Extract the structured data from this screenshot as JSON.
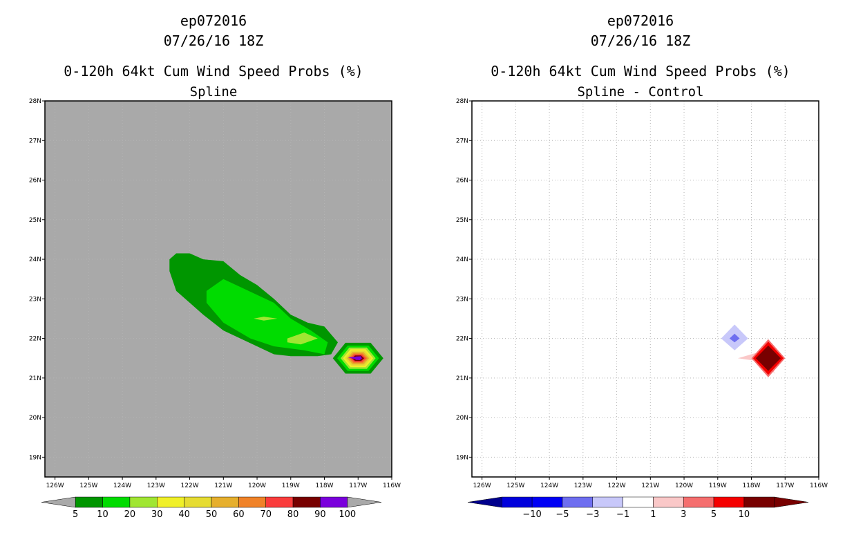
{
  "chart_data": [
    {
      "type": "contour-map",
      "storm_id": "ep072016",
      "datetime": "07/26/16 18Z",
      "title": "0-120h 64kt Cum Wind Speed Probs (%)",
      "subtitle": "Spline",
      "lon_ticks": [
        "126W",
        "125W",
        "124W",
        "123W",
        "122W",
        "121W",
        "120W",
        "119W",
        "118W",
        "117W",
        "116W"
      ],
      "lat_ticks": [
        "19N",
        "20N",
        "21N",
        "22N",
        "23N",
        "24N",
        "25N",
        "26N",
        "27N",
        "28N"
      ],
      "lon_range": [
        -126.3,
        -116.0
      ],
      "lat_range": [
        18.5,
        28.0
      ],
      "background_color": "#a9a9a9",
      "grid": true,
      "colorbar": {
        "labels": [
          "5",
          "10",
          "20",
          "30",
          "40",
          "50",
          "60",
          "70",
          "80",
          "90",
          "100"
        ],
        "colors": [
          "#009600",
          "#00dc00",
          "#a0e632",
          "#f0f028",
          "#e6dc32",
          "#e6af2d",
          "#f08228",
          "#fa3c3c",
          "#780000",
          "#7a00dc"
        ],
        "arrow_color": "#a9a9a9"
      },
      "contours": [
        {
          "level": 5,
          "color": "#009600",
          "polygon": [
            [
              -122.6,
              24.0
            ],
            [
              -122.4,
              24.15
            ],
            [
              -122.0,
              24.15
            ],
            [
              -121.6,
              24.0
            ],
            [
              -121.0,
              23.95
            ],
            [
              -120.5,
              23.6
            ],
            [
              -120.0,
              23.35
            ],
            [
              -119.5,
              23.0
            ],
            [
              -119.0,
              22.6
            ],
            [
              -118.5,
              22.4
            ],
            [
              -118.0,
              22.3
            ],
            [
              -117.6,
              21.9
            ],
            [
              -117.8,
              21.6
            ],
            [
              -118.2,
              21.55
            ],
            [
              -119.0,
              21.55
            ],
            [
              -119.5,
              21.6
            ],
            [
              -120.0,
              21.8
            ],
            [
              -121.0,
              22.2
            ],
            [
              -121.6,
              22.6
            ],
            [
              -122.0,
              22.9
            ],
            [
              -122.4,
              23.2
            ],
            [
              -122.6,
              23.7
            ]
          ]
        },
        {
          "level": 10,
          "color": "#00dc00",
          "polygon": [
            [
              -121.5,
              23.2
            ],
            [
              -121.0,
              23.5
            ],
            [
              -120.5,
              23.3
            ],
            [
              -119.5,
              22.9
            ],
            [
              -119.0,
              22.5
            ],
            [
              -118.4,
              22.2
            ],
            [
              -117.9,
              21.9
            ],
            [
              -118.0,
              21.6
            ],
            [
              -118.6,
              21.7
            ],
            [
              -119.5,
              21.8
            ],
            [
              -120.2,
              22.0
            ],
            [
              -121.0,
              22.4
            ],
            [
              -121.5,
              22.9
            ]
          ]
        },
        {
          "level": 20,
          "color": "#a0e632",
          "polygon": [
            [
              -119.1,
              22.0
            ],
            [
              -118.6,
              22.15
            ],
            [
              -118.2,
              22.0
            ],
            [
              -118.7,
              21.85
            ],
            [
              -119.1,
              21.9
            ]
          ]
        },
        {
          "level": 20,
          "color": "#a0e632",
          "polygon": [
            [
              -120.1,
              22.5
            ],
            [
              -119.8,
              22.55
            ],
            [
              -119.4,
              22.5
            ],
            [
              -119.8,
              22.45
            ]
          ]
        }
      ],
      "hotspot": {
        "lon": -117.0,
        "lat": 21.5,
        "max_level": 100,
        "rings": [
          {
            "level": 5,
            "color": "#009600",
            "rlon": 0.75,
            "rlat": 0.45
          },
          {
            "level": 10,
            "color": "#00dc00",
            "rlon": 0.62,
            "rlat": 0.37
          },
          {
            "level": 20,
            "color": "#a0e632",
            "rlon": 0.52,
            "rlat": 0.31
          },
          {
            "level": 30,
            "color": "#f0f028",
            "rlon": 0.45,
            "rlat": 0.26
          },
          {
            "level": 40,
            "color": "#e6dc32",
            "rlon": 0.39,
            "rlat": 0.22
          },
          {
            "level": 50,
            "color": "#e6af2d",
            "rlon": 0.33,
            "rlat": 0.18
          },
          {
            "level": 60,
            "color": "#f08228",
            "rlon": 0.28,
            "rlat": 0.14
          },
          {
            "level": 70,
            "color": "#fa3c3c",
            "rlon": 0.23,
            "rlat": 0.11
          },
          {
            "level": 80,
            "color": "#780000",
            "rlon": 0.18,
            "rlat": 0.08
          },
          {
            "level": 90,
            "color": "#7a00dc",
            "rlon": 0.12,
            "rlat": 0.05
          }
        ]
      }
    },
    {
      "type": "contour-map",
      "storm_id": "ep072016",
      "datetime": "07/26/16 18Z",
      "title": "0-120h 64kt Cum Wind Speed Probs (%)",
      "subtitle": "Spline - Control",
      "lon_ticks": [
        "126W",
        "125W",
        "124W",
        "123W",
        "122W",
        "121W",
        "120W",
        "119W",
        "118W",
        "117W",
        "116W"
      ],
      "lat_ticks": [
        "19N",
        "20N",
        "21N",
        "22N",
        "23N",
        "24N",
        "25N",
        "26N",
        "27N",
        "28N"
      ],
      "lon_range": [
        -126.3,
        -116.0
      ],
      "lat_range": [
        18.5,
        28.0
      ],
      "background_color": "#ffffff",
      "grid": true,
      "colorbar": {
        "labels": [
          "-10",
          "-5",
          "-3",
          "-1",
          "1",
          "3",
          "5",
          "10"
        ],
        "colors": [
          "#0000dc",
          "#0000f5",
          "#6e6ef0",
          "#c8c8fa",
          "#ffffff",
          "#fac8c8",
          "#f56e6e",
          "#f50000",
          "#780000"
        ],
        "arrow_color": "#00008c",
        "arrow_color_right": "#780000"
      },
      "features": [
        {
          "name": "negative-light",
          "level": -1,
          "color": "#c8c8fa",
          "polygon": [
            [
              -118.5,
              22.35
            ],
            [
              -118.1,
              22.0
            ],
            [
              -118.5,
              21.7
            ],
            [
              -118.9,
              22.0
            ]
          ]
        },
        {
          "name": "negative-core",
          "level": -3,
          "color": "#6e6ef0",
          "polygon": [
            [
              -118.5,
              22.12
            ],
            [
              -118.35,
              22.0
            ],
            [
              -118.5,
              21.9
            ],
            [
              -118.65,
              22.0
            ]
          ]
        },
        {
          "name": "positive-tail",
          "level": 1,
          "color": "#fac8c8",
          "polygon": [
            [
              -118.4,
              21.5
            ],
            [
              -117.6,
              21.7
            ],
            [
              -117.3,
              21.1
            ],
            [
              -117.6,
              21.4
            ]
          ]
        },
        {
          "name": "positive-mid",
          "level": 3,
          "color": "#f56e6e",
          "polygon": [
            [
              -117.5,
              21.98
            ],
            [
              -117.0,
              21.5
            ],
            [
              -117.5,
              21.02
            ],
            [
              -118.0,
              21.5
            ]
          ]
        },
        {
          "name": "positive-strong",
          "level": 5,
          "color": "#f50000",
          "polygon": [
            [
              -117.5,
              21.92
            ],
            [
              -117.05,
              21.5
            ],
            [
              -117.5,
              21.08
            ],
            [
              -117.95,
              21.5
            ]
          ]
        },
        {
          "name": "positive-core",
          "level": 10,
          "color": "#780000",
          "polygon": [
            [
              -117.5,
              21.82
            ],
            [
              -117.13,
              21.5
            ],
            [
              -117.5,
              21.18
            ],
            [
              -117.87,
              21.5
            ]
          ]
        }
      ]
    }
  ]
}
